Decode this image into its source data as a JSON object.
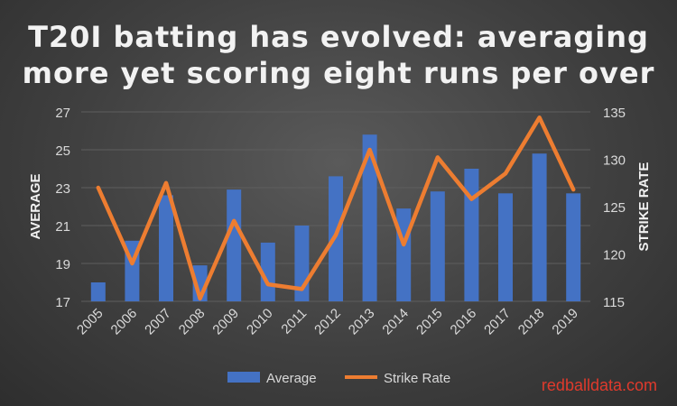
{
  "title_line1": "T20I batting has evolved: averaging",
  "title_line2": "more yet scoring eight runs per over",
  "watermark": "redballdata.com",
  "colors": {
    "bar": "#4472c4",
    "line": "#ed7d31",
    "grid": "#5e5e5e",
    "text": "#d9d9d9"
  },
  "chart_data": {
    "type": "bar",
    "categories": [
      "2005",
      "2006",
      "2007",
      "2008",
      "2009",
      "2010",
      "2011",
      "2012",
      "2013",
      "2014",
      "2015",
      "2016",
      "2017",
      "2018",
      "2019"
    ],
    "series": [
      {
        "name": "Average",
        "type": "bar",
        "axis": "left",
        "values": [
          18.0,
          20.2,
          22.6,
          18.9,
          22.9,
          20.1,
          21.0,
          23.6,
          25.8,
          21.9,
          22.8,
          24.0,
          22.7,
          24.8,
          22.7
        ]
      },
      {
        "name": "Strike Rate",
        "type": "line",
        "axis": "right",
        "values": [
          127.0,
          119.0,
          127.5,
          115.3,
          123.5,
          116.8,
          116.3,
          122.0,
          131.0,
          121.0,
          130.2,
          125.8,
          128.5,
          134.4,
          126.8
        ]
      }
    ],
    "ylabel": "AVERAGE",
    "ylabel_right": "STRIKE RATE",
    "ylim": [
      17,
      27
    ],
    "yticks": [
      17,
      19,
      21,
      23,
      25,
      27
    ],
    "ylim_right": [
      115,
      135
    ],
    "yticks_right": [
      115,
      120,
      125,
      130,
      135
    ],
    "grid": true,
    "legend": "bottom"
  }
}
